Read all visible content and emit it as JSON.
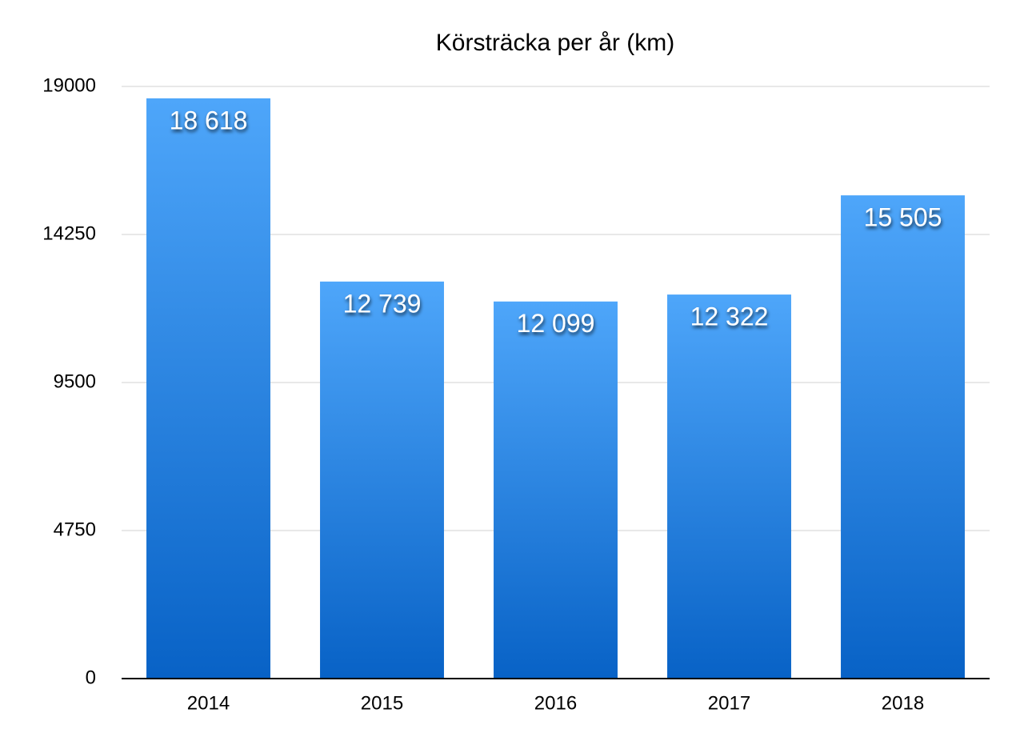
{
  "chart_data": {
    "type": "bar",
    "title": "Körsträcka per år (km)",
    "categories": [
      "2014",
      "2015",
      "2016",
      "2017",
      "2018"
    ],
    "values": [
      18618,
      12739,
      12099,
      12322,
      15505
    ],
    "value_labels": [
      "18 618",
      "12 739",
      "12 099",
      "12 322",
      "15 505"
    ],
    "ylim": [
      0,
      19000
    ],
    "yticks": [
      0,
      4750,
      9500,
      14250,
      19000
    ],
    "grid": true
  }
}
